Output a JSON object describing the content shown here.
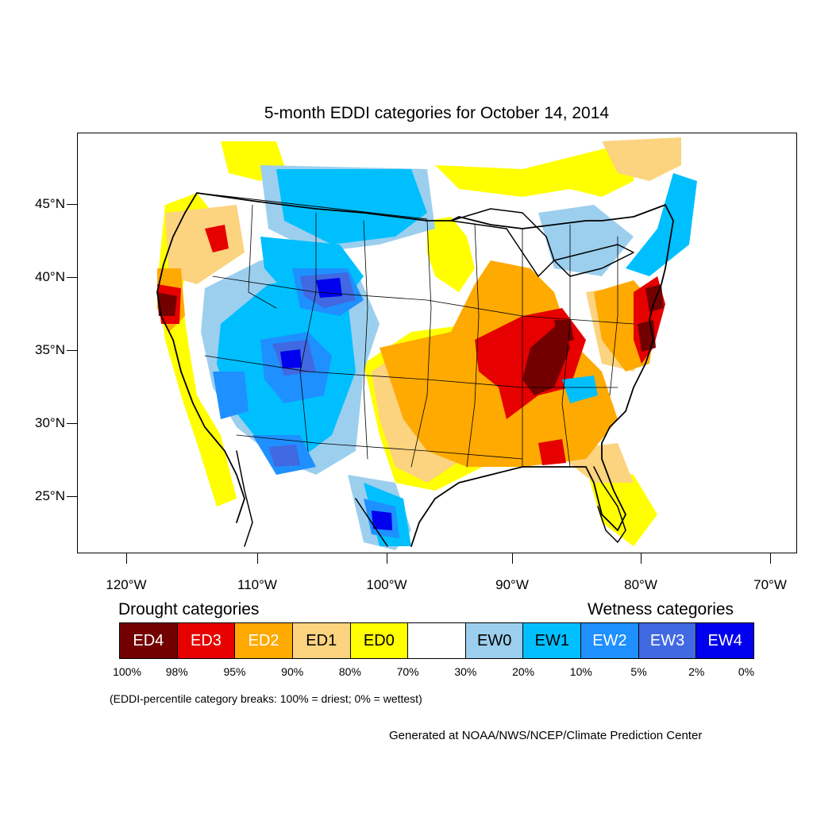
{
  "title": "5-month EDDI categories for October 14, 2014",
  "lat_labels": [
    "45°N",
    "40°N",
    "35°N",
    "30°N",
    "25°N"
  ],
  "lon_labels": [
    "120°W",
    "110°W",
    "100°W",
    "90°W",
    "80°W",
    "70°W"
  ],
  "legend": {
    "drought_heading": "Drought categories",
    "wetness_heading": "Wetness categories",
    "categories": [
      {
        "label": "ED4",
        "color": "#730000",
        "text_color": "#ffffff"
      },
      {
        "label": "ED3",
        "color": "#e60000",
        "text_color": "#ffffff"
      },
      {
        "label": "ED2",
        "color": "#ffaa00",
        "text_color": "#ffffff"
      },
      {
        "label": "ED1",
        "color": "#fcd37f",
        "text_color": "#000000"
      },
      {
        "label": "ED0",
        "color": "#ffff00",
        "text_color": "#000000"
      },
      {
        "label": "",
        "color": "#ffffff",
        "text_color": "#000000"
      },
      {
        "label": "EW0",
        "color": "#9ccfee",
        "text_color": "#000000"
      },
      {
        "label": "EW1",
        "color": "#00bfff",
        "text_color": "#000000"
      },
      {
        "label": "EW2",
        "color": "#1e90ff",
        "text_color": "#ffffff"
      },
      {
        "label": "EW3",
        "color": "#4169e1",
        "text_color": "#ffffff"
      },
      {
        "label": "EW4",
        "color": "#0000ee",
        "text_color": "#ffffff"
      }
    ],
    "percentiles": [
      "100%",
      "98%",
      "95%",
      "90%",
      "80%",
      "70%",
      "30%",
      "20%",
      "10%",
      "5%",
      "2%",
      "0%"
    ]
  },
  "note": "(EDDI-percentile category breaks: 100% = driest; 0% = wettest)",
  "credit": "Generated at NOAA/NWS/NCEP/Climate Prediction Center"
}
